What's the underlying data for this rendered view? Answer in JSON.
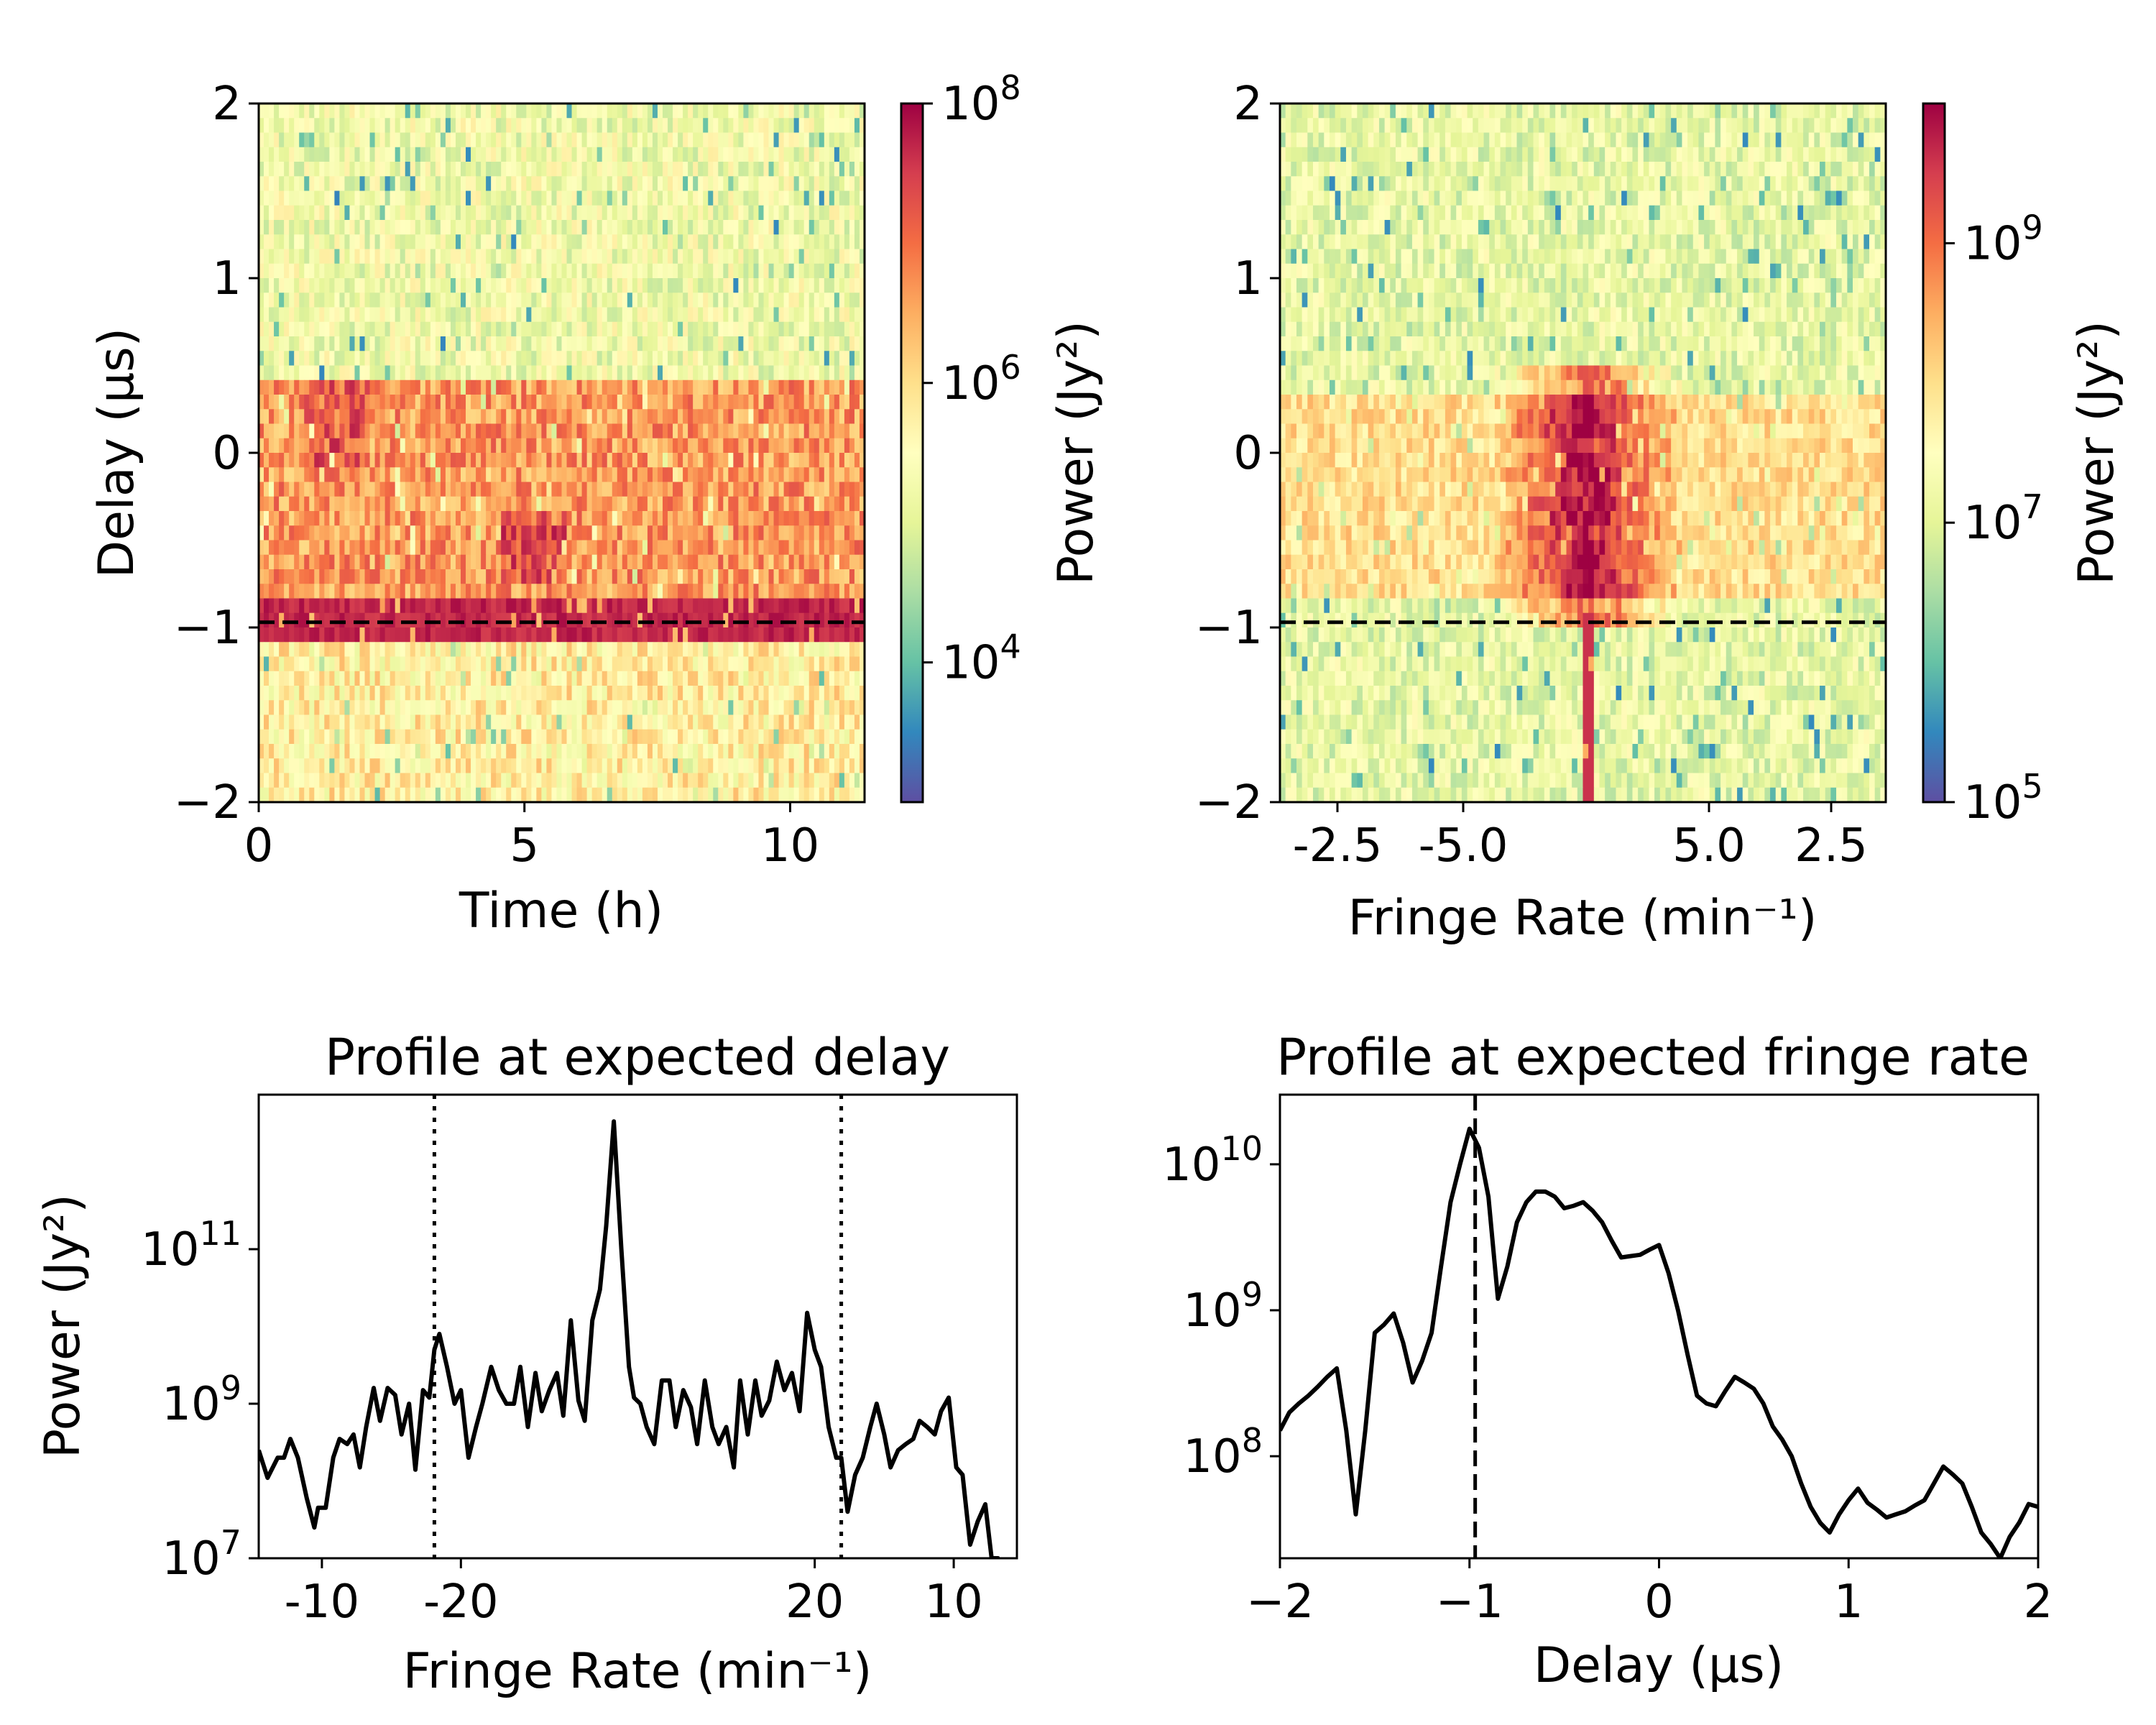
{
  "chart_data": [
    {
      "type": "heatmap",
      "id": "delay-time",
      "xlabel": "Time (h)",
      "ylabel": "Delay (μs)",
      "xlim": [
        0,
        11.4
      ],
      "ylim": [
        -2,
        2
      ],
      "xticks": [
        0,
        5,
        10
      ],
      "yticks": [
        -2,
        -1,
        0,
        1,
        2
      ],
      "ytick_labels": [
        "−2",
        "−1",
        "0",
        "1",
        "2"
      ],
      "reference_line": {
        "y": -0.97,
        "style": "dashed"
      },
      "colorbar": {
        "label": "Power (Jy²)",
        "scale": "log",
        "range": [
          1000,
          100000000
        ],
        "ticks": [
          {
            "value": 10000,
            "base": "10",
            "exp": "4"
          },
          {
            "value": 1000000,
            "base": "10",
            "exp": "6"
          },
          {
            "value": 100000000,
            "base": "10",
            "exp": "8"
          }
        ],
        "colormap": "Spectral_r"
      },
      "pattern": {
        "high_power_band_delay": [
          -1.0,
          0.35
        ],
        "peak_delay": -0.95
      }
    },
    {
      "type": "heatmap",
      "id": "delay-fringe-rate",
      "xlabel": "Fringe Rate (min⁻¹)",
      "ylabel": "",
      "xlim": [
        -12,
        12
      ],
      "ylim": [
        -2,
        2
      ],
      "xticks": [
        "-2.5",
        "-5.0",
        "5.0",
        "2.5"
      ],
      "yticks": [
        -2,
        -1,
        0,
        1,
        2
      ],
      "ytick_labels": [
        "−2",
        "−1",
        "0",
        "1",
        "2"
      ],
      "reference_line": {
        "y": -0.97,
        "style": "dashed"
      },
      "colorbar": {
        "label": "Power (Jy²)",
        "scale": "log",
        "range": [
          100000,
          10000000000
        ],
        "ticks": [
          {
            "value": 100000,
            "base": "10",
            "exp": "5"
          },
          {
            "value": 10000000,
            "base": "10",
            "exp": "7"
          },
          {
            "value": 1000000000,
            "base": "10",
            "exp": "9"
          }
        ],
        "colormap": "Spectral_r"
      },
      "pattern": {
        "peak_fringe_rate": 0.0,
        "peak_delay": -0.6
      }
    },
    {
      "type": "line",
      "id": "profile-delay",
      "title": "Profile at expected delay",
      "xlabel": "Fringe Rate (min⁻¹)",
      "ylabel": "Power (Jy²)",
      "yscale": "log",
      "xlim": [
        -30,
        30
      ],
      "ylim": [
        10000000,
        10000000000000
      ],
      "xticks": [
        {
          "pos": -25,
          "label": "-10"
        },
        {
          "pos": -14,
          "label": "-20"
        },
        {
          "pos": 14,
          "label": "20"
        },
        {
          "pos": 25,
          "label": "10"
        }
      ],
      "yticks": [
        {
          "value": 10000000,
          "base": "10",
          "exp": "7"
        },
        {
          "value": 1000000000,
          "base": "10",
          "exp": "9"
        },
        {
          "value": 100000000000,
          "base": "10",
          "exp": "11"
        }
      ],
      "vlines": [
        -16.1,
        16.1
      ],
      "series": [
        {
          "x": [
            -30,
            -29.3,
            -28.5,
            -28,
            -27.5,
            -26.9,
            -26.2,
            -25.6,
            -25.3,
            -24.7,
            -24.1,
            -23.6,
            -23.0,
            -22.5,
            -22.0,
            -21.5,
            -20.9,
            -20.4,
            -19.8,
            -19.2,
            -18.7,
            -18.1,
            -17.6,
            -17.0,
            -16.5,
            -16.1,
            -15.7,
            -15.1,
            -14.5,
            -14.0,
            -13.4,
            -12.8,
            -12.3,
            -11.6,
            -11.0,
            -10.4,
            -9.8,
            -9.3,
            -8.7,
            -8.1,
            -7.6,
            -7.0,
            -6.4,
            -5.9,
            -5.3,
            -4.7,
            -4.2,
            -3.6,
            -3.0,
            -2.5,
            -1.9,
            -1.3,
            -0.7,
            -0.3,
            0.2,
            0.7,
            1.3,
            1.9,
            2.5,
            3.0,
            3.6,
            4.2,
            4.7,
            5.3,
            5.9,
            6.4,
            7.0,
            7.6,
            8.1,
            8.7,
            9.3,
            9.8,
            10.4,
            11.0,
            11.6,
            12.2,
            12.8,
            13.4,
            14.0,
            14.5,
            15.1,
            15.7,
            16.1,
            16.6,
            17.2,
            17.8,
            18.4,
            18.9,
            19.5,
            20.0,
            20.6,
            21.2,
            21.8,
            22.3,
            22.9,
            23.5,
            24.0,
            24.6,
            25.2,
            25.7,
            26.3,
            26.9,
            27.5,
            28.0,
            28.5,
            29.0,
            29.5,
            30.0
          ],
          "y": [
            250000000.0,
            110000000.0,
            200000000.0,
            200000000.0,
            350000000.0,
            200000000.0,
            60000000.0,
            25000000.0,
            45000000.0,
            45000000.0,
            200000000.0,
            350000000.0,
            300000000.0,
            400000000.0,
            150000000.0,
            500000000.0,
            1600000000.0,
            600000000.0,
            1600000000.0,
            1300000000.0,
            400000000.0,
            1000000000.0,
            140000000.0,
            1500000000.0,
            1200000000.0,
            5000000000.0,
            8000000000.0,
            3000000000.0,
            1000000000.0,
            1500000000.0,
            200000000.0,
            500000000.0,
            1000000000.0,
            3000000000.0,
            1500000000.0,
            1000000000.0,
            1000000000.0,
            3000000000.0,
            500000000.0,
            2500000000.0,
            800000000.0,
            1500000000.0,
            2500000000.0,
            700000000.0,
            12000000000.0,
            1100000000.0,
            600000000.0,
            12000000000.0,
            30000000000.0,
            200000000000.0,
            4500000000000.0,
            100000000000.0,
            3000000000.0,
            1200000000.0,
            1000000000.0,
            500000000.0,
            300000000.0,
            2000000000.0,
            2000000000.0,
            500000000.0,
            1500000000.0,
            900000000.0,
            300000000.0,
            2000000000.0,
            500000000.0,
            300000000.0,
            500000000.0,
            150000000.0,
            2000000000.0,
            400000000.0,
            2000000000.0,
            700000000.0,
            1100000000.0,
            3500000000.0,
            1500000000.0,
            2500000000.0,
            800000000.0,
            15000000000.0,
            5000000000.0,
            3000000000.0,
            500000000.0,
            200000000.0,
            200000000.0,
            40000000.0,
            120000000.0,
            200000000.0,
            500000000.0,
            1000000000.0,
            400000000.0,
            150000000.0,
            250000000.0,
            300000000.0,
            350000000.0,
            600000000.0,
            500000000.0,
            400000000.0,
            800000000.0,
            1200000000.0,
            150000000.0,
            120000000.0,
            15000000.0,
            30000000.0,
            50000000.0,
            10000000.0,
            10000000.0,
            5000000.0,
            3000000.0,
            10000000.0
          ]
        }
      ]
    },
    {
      "type": "line",
      "id": "profile-fringe-rate",
      "title": "Profile at expected fringe rate",
      "xlabel": "Delay (μs)",
      "ylabel": "",
      "yscale": "log",
      "xlim": [
        -2,
        2
      ],
      "ylim": [
        20000000,
        30000000000
      ],
      "xticks": [
        {
          "pos": -2,
          "label": "−2"
        },
        {
          "pos": -1,
          "label": "−1"
        },
        {
          "pos": 0,
          "label": "0"
        },
        {
          "pos": 1,
          "label": "1"
        },
        {
          "pos": 2,
          "label": "2"
        }
      ],
      "yticks": [
        {
          "value": 100000000,
          "base": "10",
          "exp": "8"
        },
        {
          "value": 1000000000,
          "base": "10",
          "exp": "9"
        },
        {
          "value": 10000000000,
          "base": "10",
          "exp": "10"
        }
      ],
      "vline": -0.97,
      "series": [
        {
          "x": [
            -2.0,
            -1.95,
            -1.9,
            -1.85,
            -1.8,
            -1.75,
            -1.7,
            -1.65,
            -1.6,
            -1.55,
            -1.5,
            -1.45,
            -1.4,
            -1.35,
            -1.3,
            -1.25,
            -1.2,
            -1.15,
            -1.1,
            -1.05,
            -1.0,
            -0.95,
            -0.9,
            -0.85,
            -0.8,
            -0.75,
            -0.7,
            -0.65,
            -0.6,
            -0.55,
            -0.5,
            -0.45,
            -0.4,
            -0.35,
            -0.3,
            -0.25,
            -0.2,
            -0.15,
            -0.1,
            -0.05,
            0.0,
            0.05,
            0.1,
            0.15,
            0.2,
            0.25,
            0.3,
            0.35,
            0.4,
            0.45,
            0.5,
            0.55,
            0.6,
            0.65,
            0.7,
            0.75,
            0.8,
            0.85,
            0.9,
            0.95,
            1.0,
            1.05,
            1.1,
            1.15,
            1.2,
            1.25,
            1.3,
            1.35,
            1.4,
            1.45,
            1.5,
            1.55,
            1.6,
            1.65,
            1.7,
            1.75,
            1.8,
            1.85,
            1.9,
            1.95,
            2.0
          ],
          "y": [
            150000000.0,
            200000000.0,
            230000000.0,
            260000000.0,
            300000000.0,
            350000000.0,
            400000000.0,
            150000000.0,
            40000000.0,
            150000000.0,
            700000000.0,
            800000000.0,
            950000000.0,
            600000000.0,
            320000000.0,
            450000000.0,
            700000000.0,
            2000000000.0,
            5500000000.0,
            10000000000.0,
            17500000000.0,
            13000000000.0,
            6000000000.0,
            1200000000.0,
            2000000000.0,
            4000000000.0,
            5500000000.0,
            6500000000.0,
            6500000000.0,
            6000000000.0,
            5000000000.0,
            5200000000.0,
            5500000000.0,
            4800000000.0,
            4000000000.0,
            3000000000.0,
            2300000000.0,
            2350000000.0,
            2400000000.0,
            2600000000.0,
            2800000000.0,
            1800000000.0,
            1000000000.0,
            500000000.0,
            260000000.0,
            230000000.0,
            220000000.0,
            280000000.0,
            350000000.0,
            320000000.0,
            290000000.0,
            230000000.0,
            160000000.0,
            130000000.0,
            100000000.0,
            65000000.0,
            45000000.0,
            35000000.0,
            30000000.0,
            40000000.0,
            50000000.0,
            60000000.0,
            48000000.0,
            43000000.0,
            38000000.0,
            40000000.0,
            42000000.0,
            46000000.0,
            50000000.0,
            65000000.0,
            85000000.0,
            75000000.0,
            65000000.0,
            45000000.0,
            30000000.0,
            25000000.0,
            20000000.0,
            28000000.0,
            35000000.0,
            47000000.0,
            45000000.0
          ]
        }
      ]
    }
  ]
}
